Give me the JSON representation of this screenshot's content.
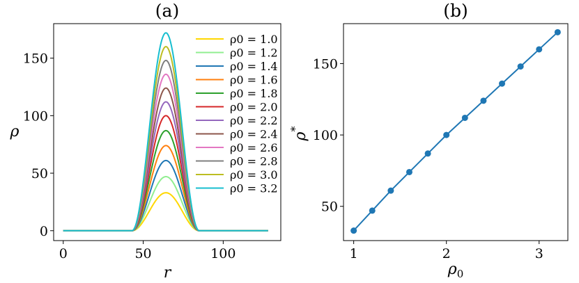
{
  "chart_data": [
    {
      "type": "line",
      "title": "(a)",
      "xlabel": "r",
      "ylabel": "ρ",
      "xlim": [
        -6,
        136
      ],
      "ylim": [
        -8.6,
        180
      ],
      "xticks": [
        0,
        50,
        100
      ],
      "yticks": [
        0,
        50,
        100,
        150
      ],
      "profile": {
        "support": [
          43,
          85
        ],
        "peak_r": 64.2,
        "domain": [
          0,
          128
        ]
      },
      "legend_position": "upper-right",
      "series": [
        {
          "name": "ρ0 = 1.0",
          "rho0": 1.0,
          "peak": 33.0,
          "color": "#ffd700"
        },
        {
          "name": "ρ0 = 1.2",
          "rho0": 1.2,
          "peak": 47.0,
          "color": "#90ee90"
        },
        {
          "name": "ρ0 = 1.4",
          "rho0": 1.4,
          "peak": 61.0,
          "color": "#1f77b4"
        },
        {
          "name": "ρ0 = 1.6",
          "rho0": 1.6,
          "peak": 74.0,
          "color": "#ff7f0e"
        },
        {
          "name": "ρ0 = 1.8",
          "rho0": 1.8,
          "peak": 87.0,
          "color": "#2ca02c"
        },
        {
          "name": "ρ0 = 2.0",
          "rho0": 2.0,
          "peak": 100.0,
          "color": "#d62728"
        },
        {
          "name": "ρ0 = 2.2",
          "rho0": 2.2,
          "peak": 112.0,
          "color": "#9467bd"
        },
        {
          "name": "ρ0 = 2.4",
          "rho0": 2.4,
          "peak": 124.0,
          "color": "#8c564b"
        },
        {
          "name": "ρ0 = 2.6",
          "rho0": 2.6,
          "peak": 136.0,
          "color": "#e377c2"
        },
        {
          "name": "ρ0 = 2.8",
          "rho0": 2.8,
          "peak": 148.0,
          "color": "#7f7f7f"
        },
        {
          "name": "ρ0 = 3.0",
          "rho0": 3.0,
          "peak": 160.0,
          "color": "#bcbd22"
        },
        {
          "name": "ρ0 = 3.2",
          "rho0": 3.2,
          "peak": 172.0,
          "color": "#17becf"
        }
      ]
    },
    {
      "type": "scatter",
      "title": "(b)",
      "xlabel": "ρ0",
      "ylabel": "ρ*",
      "xlim": [
        0.89,
        3.31
      ],
      "ylim": [
        26.0,
        178.0
      ],
      "xticks": [
        1,
        2,
        3
      ],
      "yticks": [
        50,
        100,
        150
      ],
      "line": true,
      "color": "#1f77b4",
      "x": [
        1.0,
        1.2,
        1.4,
        1.6,
        1.8,
        2.0,
        2.2,
        2.4,
        2.6,
        2.8,
        3.0,
        3.2
      ],
      "y": [
        33.0,
        47.0,
        61.0,
        74.0,
        87.0,
        100.0,
        112.0,
        124.0,
        136.0,
        148.0,
        160.0,
        172.0
      ]
    }
  ]
}
